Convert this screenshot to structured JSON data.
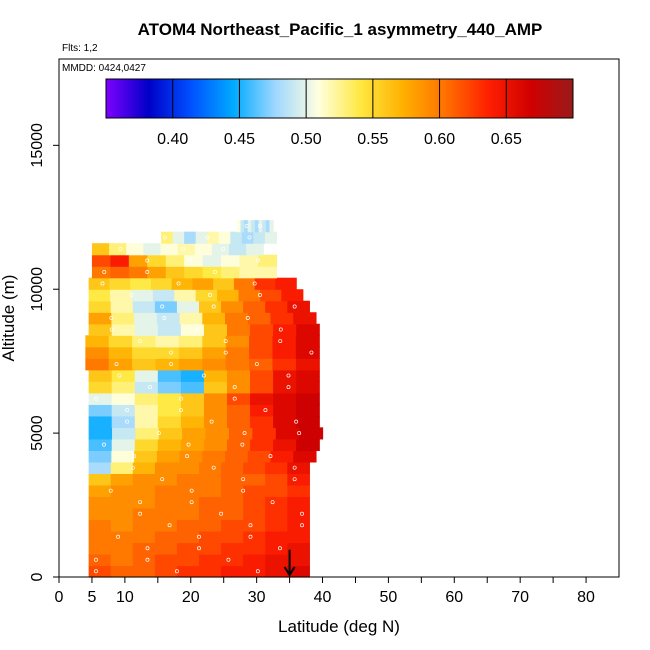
{
  "chart_data": {
    "type": "heatmap",
    "title": "ATOM4 Northeast_Pacific_1 asymmetry_440_AMP",
    "flights_label": "Flts: 1,2",
    "dates_label": "MMDD: 0424,0427",
    "xlabel": "Latitude (deg N)",
    "ylabel": "Altitude (m)",
    "xlim": [
      0,
      85
    ],
    "ylim": [
      0,
      18000
    ],
    "x_ticks": [
      0,
      5,
      10,
      20,
      30,
      40,
      50,
      60,
      70,
      80
    ],
    "x_minor_ticks": [
      15,
      25,
      35,
      45,
      55,
      65,
      75
    ],
    "y_ticks": [
      0,
      5000,
      10000,
      15000
    ],
    "colorbar": {
      "vmin": 0.35,
      "vmax": 0.7,
      "ticks": [
        0.4,
        0.45,
        0.5,
        0.55,
        0.6,
        0.65
      ],
      "tick_labels": [
        "0.40",
        "0.45",
        "0.50",
        "0.55",
        "0.60",
        "0.65"
      ],
      "colors": [
        "#7f00ff",
        "#0000c8",
        "#0050ff",
        "#00aaff",
        "#a0d8ff",
        "#ffffe0",
        "#ffe840",
        "#ffb000",
        "#ff7000",
        "#ff2000",
        "#d00000",
        "#9a1a1a"
      ]
    },
    "rows": [
      {
        "alt": 200,
        "lat_min": 4.5,
        "lat_max": 38.0,
        "values": [
          0.62,
          0.61,
          0.61,
          0.62,
          0.63,
          0.63,
          0.64,
          0.64,
          0.65,
          0.66
        ]
      },
      {
        "alt": 600,
        "lat_min": 4.5,
        "lat_max": 38.0,
        "values": [
          0.61,
          0.6,
          0.61,
          0.62,
          0.62,
          0.63,
          0.63,
          0.64,
          0.65,
          0.65
        ]
      },
      {
        "alt": 1000,
        "lat_min": 4.5,
        "lat_max": 38.0,
        "values": [
          0.6,
          0.6,
          0.61,
          0.61,
          0.62,
          0.62,
          0.63,
          0.63,
          0.64,
          0.65
        ]
      },
      {
        "alt": 1400,
        "lat_min": 4.5,
        "lat_max": 38.0,
        "values": [
          0.6,
          0.6,
          0.6,
          0.61,
          0.61,
          0.62,
          0.62,
          0.63,
          0.64,
          0.64
        ]
      },
      {
        "alt": 1800,
        "lat_min": 4.5,
        "lat_max": 38.0,
        "values": [
          0.6,
          0.59,
          0.6,
          0.6,
          0.61,
          0.61,
          0.62,
          0.62,
          0.63,
          0.64
        ]
      },
      {
        "alt": 2200,
        "lat_min": 4.5,
        "lat_max": 38.0,
        "values": [
          0.59,
          0.59,
          0.6,
          0.6,
          0.6,
          0.61,
          0.61,
          0.62,
          0.63,
          0.64
        ]
      },
      {
        "alt": 2600,
        "lat_min": 4.5,
        "lat_max": 38.0,
        "values": [
          0.59,
          0.59,
          0.59,
          0.6,
          0.6,
          0.61,
          0.61,
          0.62,
          0.63,
          0.64
        ]
      },
      {
        "alt": 3000,
        "lat_min": 4.5,
        "lat_max": 38.0,
        "values": [
          0.58,
          0.59,
          0.59,
          0.6,
          0.6,
          0.6,
          0.61,
          0.62,
          0.62,
          0.63
        ]
      },
      {
        "alt": 3400,
        "lat_min": 4.5,
        "lat_max": 38.0,
        "values": [
          0.56,
          0.58,
          0.59,
          0.59,
          0.6,
          0.6,
          0.61,
          0.61,
          0.62,
          0.64
        ]
      },
      {
        "alt": 3800,
        "lat_min": 4.5,
        "lat_max": 38.0,
        "values": [
          0.48,
          0.53,
          0.57,
          0.59,
          0.59,
          0.6,
          0.61,
          0.62,
          0.63,
          0.65
        ]
      },
      {
        "alt": 4200,
        "lat_min": 4.5,
        "lat_max": 39.0,
        "values": [
          0.47,
          0.51,
          0.56,
          0.58,
          0.59,
          0.6,
          0.61,
          0.62,
          0.64,
          0.66
        ]
      },
      {
        "alt": 4600,
        "lat_min": 4.5,
        "lat_max": 39.5,
        "values": [
          0.46,
          0.5,
          0.55,
          0.57,
          0.58,
          0.59,
          0.61,
          0.63,
          0.65,
          0.67
        ]
      },
      {
        "alt": 5000,
        "lat_min": 4.5,
        "lat_max": 40.0,
        "values": [
          0.45,
          0.49,
          0.53,
          0.56,
          0.58,
          0.59,
          0.61,
          0.63,
          0.66,
          0.67
        ]
      },
      {
        "alt": 5400,
        "lat_min": 4.5,
        "lat_max": 39.5,
        "values": [
          0.45,
          0.48,
          0.52,
          0.55,
          0.57,
          0.59,
          0.61,
          0.63,
          0.66,
          0.67
        ]
      },
      {
        "alt": 5800,
        "lat_min": 4.5,
        "lat_max": 39.5,
        "values": [
          0.47,
          0.49,
          0.52,
          0.54,
          0.56,
          0.59,
          0.61,
          0.64,
          0.66,
          0.67
        ]
      },
      {
        "alt": 6200,
        "lat_min": 4.5,
        "lat_max": 39.5,
        "values": [
          0.5,
          0.51,
          0.53,
          0.54,
          0.56,
          0.59,
          0.62,
          0.65,
          0.66,
          0.67
        ]
      },
      {
        "alt": 6600,
        "lat_min": 4.5,
        "lat_max": 39.5,
        "values": [
          0.55,
          0.53,
          0.49,
          0.47,
          0.46,
          0.56,
          0.59,
          0.62,
          0.65,
          0.66
        ]
      },
      {
        "alt": 7000,
        "lat_min": 4.5,
        "lat_max": 39.5,
        "values": [
          0.56,
          0.54,
          0.5,
          0.46,
          0.45,
          0.57,
          0.59,
          0.62,
          0.65,
          0.66
        ]
      },
      {
        "alt": 7400,
        "lat_min": 4.0,
        "lat_max": 39.5,
        "values": [
          0.6,
          0.58,
          0.56,
          0.57,
          0.58,
          0.59,
          0.6,
          0.61,
          0.63,
          0.65
        ]
      },
      {
        "alt": 7800,
        "lat_min": 4.0,
        "lat_max": 39.5,
        "values": [
          0.59,
          0.57,
          0.55,
          0.55,
          0.56,
          0.58,
          0.6,
          0.62,
          0.64,
          0.66
        ]
      },
      {
        "alt": 8200,
        "lat_min": 4.0,
        "lat_max": 39.5,
        "values": [
          0.57,
          0.55,
          0.53,
          0.52,
          0.53,
          0.56,
          0.59,
          0.62,
          0.64,
          0.66
        ]
      },
      {
        "alt": 8600,
        "lat_min": 4.5,
        "lat_max": 39.5,
        "values": [
          0.56,
          0.52,
          0.5,
          0.49,
          0.51,
          0.56,
          0.6,
          0.62,
          0.64,
          0.66
        ]
      },
      {
        "alt": 9000,
        "lat_min": 4.5,
        "lat_max": 39.0,
        "values": [
          0.58,
          0.53,
          0.5,
          0.49,
          0.52,
          0.57,
          0.6,
          0.61,
          0.63,
          0.65
        ]
      },
      {
        "alt": 9400,
        "lat_min": 4.5,
        "lat_max": 38.0,
        "values": [
          0.55,
          0.52,
          0.49,
          0.47,
          0.5,
          0.56,
          0.59,
          0.61,
          0.63,
          0.65
        ]
      },
      {
        "alt": 9800,
        "lat_min": 4.5,
        "lat_max": 37.0,
        "values": [
          0.54,
          0.52,
          0.5,
          0.49,
          0.52,
          0.55,
          0.57,
          0.6,
          0.62,
          0.64
        ]
      },
      {
        "alt": 10200,
        "lat_min": 4.5,
        "lat_max": 36.0,
        "values": [
          0.56,
          0.55,
          0.54,
          0.55,
          0.57,
          0.58,
          0.56,
          0.6,
          0.63,
          0.64
        ]
      },
      {
        "alt": 10600,
        "lat_min": 5.0,
        "lat_max": 33.0,
        "values": [
          0.6,
          0.61,
          0.6,
          0.58,
          0.56,
          0.55,
          0.54,
          0.53,
          0.52,
          0.52
        ]
      },
      {
        "alt": 11000,
        "lat_min": 5.0,
        "lat_max": 33.0,
        "values": [
          0.62,
          0.64,
          0.58,
          0.55,
          0.53,
          0.51,
          0.5,
          0.51,
          0.52,
          0.53
        ]
      },
      {
        "alt": 11400,
        "lat_min": 5.0,
        "lat_max": 31.0,
        "values": [
          0.56,
          0.53,
          0.51,
          0.5,
          0.51,
          0.52,
          0.51,
          0.5,
          0.49,
          0.5
        ]
      },
      {
        "alt": 11800,
        "lat_min": 15.5,
        "lat_max": 33.0,
        "values": [
          0.53,
          0.5,
          0.48,
          0.5,
          0.52,
          0.51,
          0.49,
          0.48,
          0.49,
          0.5
        ]
      },
      {
        "alt": 12200,
        "lat_min": 27.0,
        "lat_max": 32.5,
        "values": [
          0.51,
          0.49,
          0.48,
          0.5,
          0.49,
          0.48,
          0.5,
          0.49,
          0.48,
          0.5
        ]
      }
    ],
    "arrow_marker": {
      "lat": 35,
      "alt": 600
    }
  }
}
